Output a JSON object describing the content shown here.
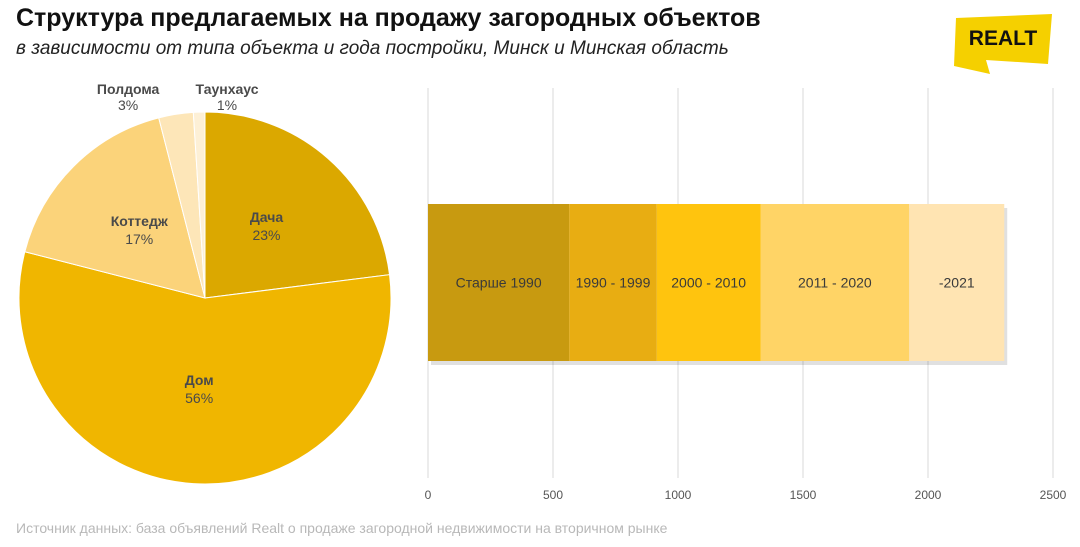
{
  "header": {
    "title": "Структура предлагаемых на продажу загородных объектов",
    "subtitle": "в зависимости от типа объекта и года постройки, Минск и Минская область"
  },
  "logo": {
    "text": "REALT",
    "color": "#f5d000"
  },
  "footer": {
    "source": "Источник данных: база объявлений Realt о продаже загородной недвижимости на вторичном рынке"
  },
  "chart_data": [
    {
      "type": "pie",
      "labels": [
        "Дача",
        "Дом",
        "Коттедж",
        "Полдома",
        "Таунхаус"
      ],
      "values": [
        23,
        56,
        17,
        3,
        1
      ],
      "display": [
        "23%",
        "56%",
        "17%",
        "3%",
        "1%"
      ],
      "colors": [
        "#dba800",
        "#f0b600",
        "#fbd37a",
        "#fde6b8",
        "#fdf0d6"
      ],
      "start": "12 o'clock",
      "direction": "clockwise"
    },
    {
      "type": "bar",
      "orientation": "horizontal-stacked",
      "categories": [
        "Старше 1990",
        "1990 - 1999",
        "2000 - 2010",
        "2011 - 2020",
        "-2021"
      ],
      "values": [
        565,
        350,
        415,
        595,
        380
      ],
      "colors": [
        "#c89a10",
        "#e8ad12",
        "#ffc40e",
        "#ffd466",
        "#ffe4b2"
      ],
      "xlim": [
        0,
        2500
      ],
      "xticks": [
        "0",
        "500",
        "1000",
        "1500",
        "2000",
        "2500"
      ],
      "grid": true
    }
  ]
}
